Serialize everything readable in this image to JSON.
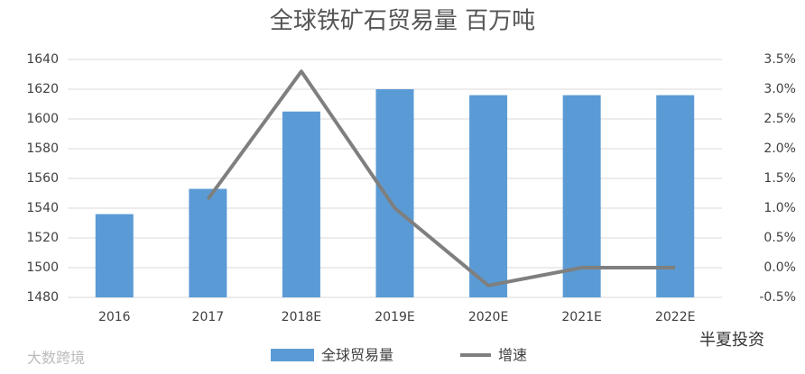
{
  "chart_data": {
    "type": "bar-line",
    "title": "全球铁矿石贸易量 百万吨",
    "categories": [
      "2016",
      "2017",
      "2018E",
      "2019E",
      "2020E",
      "2021E",
      "2022E"
    ],
    "series": [
      {
        "name": "全球贸易量",
        "type": "bar",
        "color": "#5b9bd5",
        "values": [
          1536,
          1553,
          1605,
          1620,
          1616,
          1616,
          1616
        ]
      },
      {
        "name": "增速",
        "type": "line",
        "axis": "y2",
        "color": "#7f7f7f",
        "values": [
          null,
          1.15,
          3.3,
          1.0,
          -0.3,
          0.0,
          0.0
        ]
      }
    ],
    "ylim": [
      1480,
      1640
    ],
    "yticks": [
      1480,
      1500,
      1520,
      1540,
      1560,
      1580,
      1600,
      1620,
      1640
    ],
    "y2lim": [
      -0.5,
      3.5
    ],
    "y2ticks": [
      {
        "value": -0.5,
        "label": "-0.5%"
      },
      {
        "value": 0,
        "label": "0.0%"
      },
      {
        "value": 0.5,
        "label": "0.5%"
      },
      {
        "value": 1,
        "label": "1.0%"
      },
      {
        "value": 1.5,
        "label": "1.5%"
      },
      {
        "value": 2,
        "label": "2.0%"
      },
      {
        "value": 2.5,
        "label": "2.5%"
      },
      {
        "value": 3,
        "label": "3.0%"
      },
      {
        "value": 3.5,
        "label": "3.5%"
      }
    ],
    "grid": true,
    "legend": "bottom"
  },
  "watermarks": [
    "大数跨境",
    "半夏投资"
  ]
}
